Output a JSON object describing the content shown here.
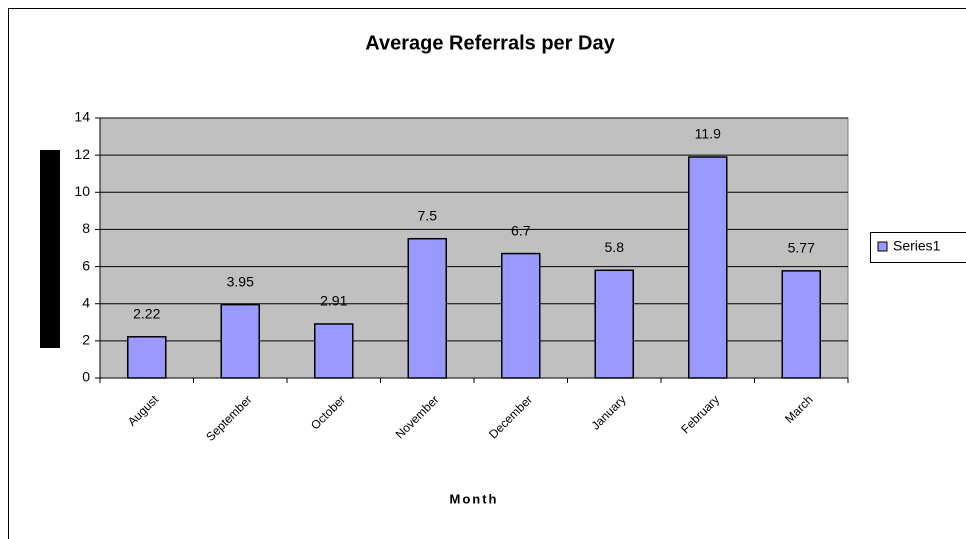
{
  "chart_data": {
    "type": "bar",
    "title": "Average Referrals per Day",
    "x_label": "Month",
    "categories": [
      "August",
      "September",
      "October",
      "November",
      "December",
      "January",
      "February",
      "March"
    ],
    "series": [
      {
        "name": "Series1",
        "color": "#9999ff",
        "values": [
          2.22,
          3.95,
          2.91,
          7.5,
          6.7,
          5.8,
          11.9,
          5.77
        ]
      }
    ],
    "ylim": [
      0,
      14
    ],
    "yticks": [
      0,
      2,
      4,
      6,
      8,
      10,
      12,
      14
    ],
    "grid": true,
    "legend": "right"
  }
}
